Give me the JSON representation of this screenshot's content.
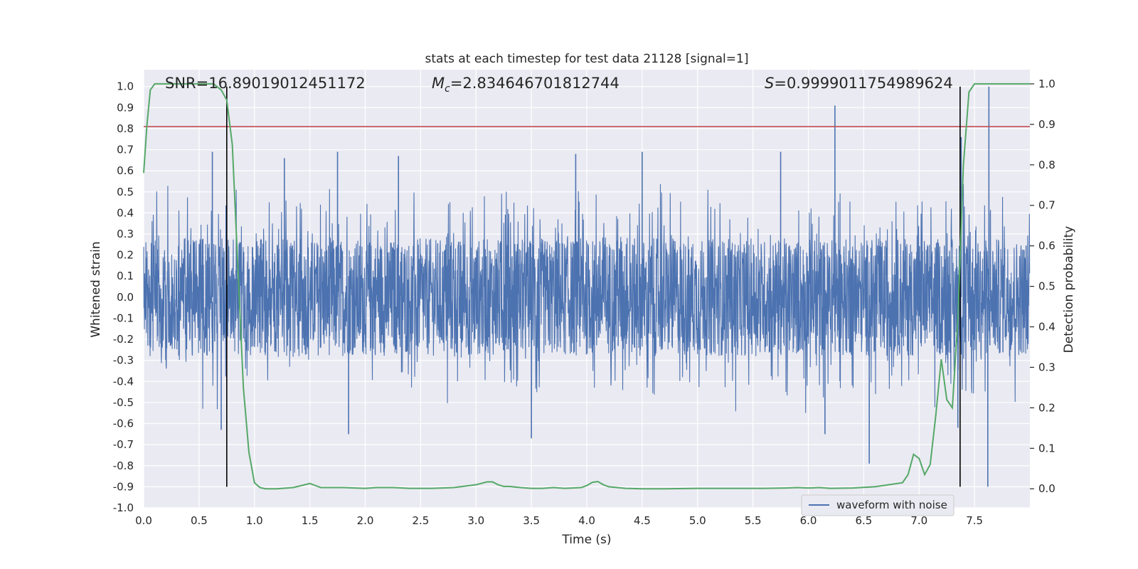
{
  "chart_data": {
    "type": "line",
    "title": "stats at each timestep for test data 21128 [signal=1]",
    "xlabel": "Time (s)",
    "ylabel": "Whitened strain",
    "y2label": "Detection probability",
    "xlim": [
      0.0,
      8.0
    ],
    "ylim": [
      -1.0,
      1.08
    ],
    "y2lim": [
      -0.047,
      1.035
    ],
    "xticks": [
      "0.0",
      "0.5",
      "1.0",
      "1.5",
      "2.0",
      "2.5",
      "3.0",
      "3.5",
      "4.0",
      "4.5",
      "5.0",
      "5.5",
      "6.0",
      "6.5",
      "7.0",
      "7.5"
    ],
    "yticks": [
      "1.0",
      "0.9",
      "0.8",
      "0.7",
      "0.6",
      "0.5",
      "0.4",
      "0.3",
      "0.2",
      "0.1",
      "0.0",
      "-0.1",
      "-0.2",
      "-0.3",
      "-0.4",
      "-0.5",
      "-0.6",
      "-0.7",
      "-0.8",
      "-0.9",
      "-1.0"
    ],
    "y2ticks": [
      "1.0",
      "0.9",
      "0.8",
      "0.7",
      "0.6",
      "0.5",
      "0.4",
      "0.3",
      "0.2",
      "0.1",
      "0.0"
    ],
    "grid": true,
    "legend_position": "lower-right",
    "annotations": {
      "snr": "SNR=16.89019012451172",
      "mc_symbol": "M",
      "mc_sub": "c",
      "mc_value": "=2.834646701812744",
      "s_symbol": "S",
      "s_value": "=0.9999011754989624"
    },
    "series": [
      {
        "name": "waveform with noise",
        "axis": "left",
        "color": "#4c72b0",
        "envelope_notable_peaks": [
          {
            "t": 0.62,
            "v": 0.69
          },
          {
            "t": 1.27,
            "v": 0.66
          },
          {
            "t": 1.75,
            "v": 0.69
          },
          {
            "t": 2.3,
            "v": 0.67
          },
          {
            "t": 3.9,
            "v": 0.68
          },
          {
            "t": 4.5,
            "v": 0.69
          },
          {
            "t": 5.75,
            "v": 0.69
          },
          {
            "t": 6.24,
            "v": 0.91
          },
          {
            "t": 7.38,
            "v": 0.76
          },
          {
            "t": 7.63,
            "v": 1.0
          }
        ],
        "envelope_notable_troughs": [
          {
            "t": 0.7,
            "v": -0.63
          },
          {
            "t": 1.85,
            "v": -0.65
          },
          {
            "t": 3.5,
            "v": -0.67
          },
          {
            "t": 6.15,
            "v": -0.65
          },
          {
            "t": 6.55,
            "v": -0.79
          },
          {
            "t": 7.35,
            "v": -0.62
          },
          {
            "t": 7.62,
            "v": -0.9
          }
        ]
      },
      {
        "name": "",
        "axis": "right",
        "color": "#55a868",
        "x": [
          0.0,
          0.03,
          0.06,
          0.1,
          0.15,
          0.3,
          0.5,
          0.63,
          0.7,
          0.75,
          0.8,
          0.85,
          0.9,
          0.95,
          1.0,
          1.05,
          1.1,
          1.2,
          1.35,
          1.5,
          1.6,
          1.8,
          2.0,
          2.1,
          2.25,
          2.4,
          2.6,
          2.8,
          3.0,
          3.1,
          3.15,
          3.2,
          3.25,
          3.3,
          3.4,
          3.5,
          3.6,
          3.7,
          3.8,
          3.95,
          4.0,
          4.05,
          4.1,
          4.15,
          4.2,
          4.35,
          4.5,
          4.7,
          5.0,
          5.3,
          5.6,
          5.8,
          5.9,
          6.0,
          6.1,
          6.2,
          6.4,
          6.6,
          6.85,
          6.9,
          6.95,
          7.0,
          7.05,
          7.1,
          7.15,
          7.2,
          7.25,
          7.3,
          7.35,
          7.4,
          7.45,
          7.5,
          7.55,
          7.6,
          7.7,
          8.0
        ],
        "values": [
          0.78,
          0.9,
          0.985,
          1.0,
          1.0,
          1.0,
          1.0,
          1.0,
          0.985,
          0.96,
          0.85,
          0.55,
          0.25,
          0.09,
          0.015,
          0.003,
          0.0,
          0.0,
          0.003,
          0.013,
          0.003,
          0.003,
          0.001,
          0.003,
          0.003,
          0.001,
          0.001,
          0.003,
          0.01,
          0.017,
          0.017,
          0.01,
          0.006,
          0.006,
          0.003,
          0.001,
          0.001,
          0.003,
          0.001,
          0.003,
          0.008,
          0.016,
          0.018,
          0.01,
          0.005,
          0.001,
          0.0,
          0.0,
          0.001,
          0.001,
          0.001,
          0.002,
          0.003,
          0.002,
          0.003,
          0.001,
          0.002,
          0.005,
          0.015,
          0.035,
          0.085,
          0.075,
          0.035,
          0.06,
          0.18,
          0.32,
          0.22,
          0.2,
          0.42,
          0.8,
          0.98,
          1.0,
          1.0,
          1.0,
          1.0,
          1.0
        ]
      }
    ],
    "threshold_line": {
      "value": 0.81,
      "axis": "left",
      "color": "#c44e52"
    },
    "vertical_markers": [
      {
        "t": 0.75,
        "color": "#000000"
      },
      {
        "t": 7.37,
        "color": "#000000"
      }
    ]
  }
}
